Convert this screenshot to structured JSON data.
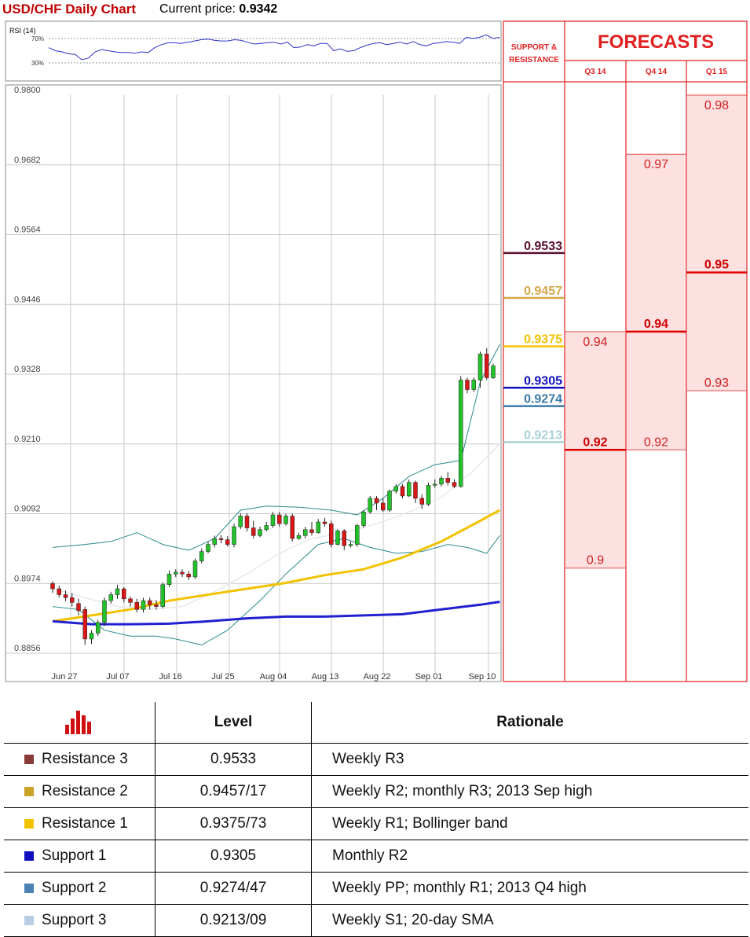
{
  "header": {
    "title": "USD/CHF Daily Chart",
    "price_label": "Current price:",
    "price_value": "0.9342"
  },
  "rsi": {
    "label": "RSI (14)",
    "levels": [
      "70%",
      "30%"
    ]
  },
  "chart_data": {
    "type": "candlestick",
    "y_ticks": [
      "0.9800",
      "0.9682",
      "0.9564",
      "0.9446",
      "0.9328",
      "0.9210",
      "0.9092",
      "0.8974",
      "0.8856"
    ],
    "ylim": [
      0.8856,
      0.98
    ],
    "x_ticks": [
      "Jun 27",
      "Jul 07",
      "Jul 16",
      "Jul 25",
      "Aug 04",
      "Aug 13",
      "Aug 22",
      "Sep 01",
      "Sep 10"
    ],
    "candles": [
      [
        0.8974,
        0.8965,
        0.8978,
        0.8958
      ],
      [
        0.8965,
        0.8955,
        0.897,
        0.895
      ],
      [
        0.8955,
        0.895,
        0.8962,
        0.8944
      ],
      [
        0.895,
        0.8942,
        0.8958,
        0.8935
      ],
      [
        0.894,
        0.8928,
        0.8948,
        0.892
      ],
      [
        0.893,
        0.888,
        0.8935,
        0.887
      ],
      [
        0.888,
        0.889,
        0.8895,
        0.8872
      ],
      [
        0.889,
        0.8908,
        0.8912,
        0.8885
      ],
      [
        0.8908,
        0.8945,
        0.895,
        0.8902
      ],
      [
        0.8945,
        0.8955,
        0.896,
        0.894
      ],
      [
        0.8955,
        0.8965,
        0.8972,
        0.8948
      ],
      [
        0.8965,
        0.8948,
        0.8968,
        0.8942
      ],
      [
        0.8948,
        0.8942,
        0.8952,
        0.8935
      ],
      [
        0.8942,
        0.893,
        0.8948,
        0.8925
      ],
      [
        0.893,
        0.8945,
        0.895,
        0.8925
      ],
      [
        0.8945,
        0.8938,
        0.895,
        0.893
      ],
      [
        0.8938,
        0.8935,
        0.8946,
        0.893
      ],
      [
        0.8935,
        0.8972,
        0.8976,
        0.8932
      ],
      [
        0.8972,
        0.899,
        0.8996,
        0.8968
      ],
      [
        0.899,
        0.8993,
        0.8998,
        0.8985
      ],
      [
        0.8993,
        0.899,
        0.8998,
        0.8985
      ],
      [
        0.899,
        0.8985,
        0.8995,
        0.898
      ],
      [
        0.8985,
        0.9012,
        0.9016,
        0.8982
      ],
      [
        0.9012,
        0.9028,
        0.9033,
        0.9008
      ],
      [
        0.9028,
        0.904,
        0.9045,
        0.9025
      ],
      [
        0.904,
        0.905,
        0.9055,
        0.9035
      ],
      [
        0.905,
        0.9048,
        0.9056,
        0.9042
      ],
      [
        0.9048,
        0.904,
        0.9054,
        0.9036
      ],
      [
        0.904,
        0.907,
        0.9075,
        0.9035
      ],
      [
        0.907,
        0.9088,
        0.9093,
        0.9066
      ],
      [
        0.9088,
        0.9068,
        0.9093,
        0.9062
      ],
      [
        0.9068,
        0.9055,
        0.908,
        0.905
      ],
      [
        0.9055,
        0.9065,
        0.907,
        0.9052
      ],
      [
        0.9065,
        0.9072,
        0.9078,
        0.9062
      ],
      [
        0.9072,
        0.909,
        0.9095,
        0.9068
      ],
      [
        0.909,
        0.9075,
        0.9095,
        0.907
      ],
      [
        0.9075,
        0.9088,
        0.9092,
        0.9072
      ],
      [
        0.9088,
        0.905,
        0.9092,
        0.9045
      ],
      [
        0.905,
        0.9055,
        0.906,
        0.9048
      ],
      [
        0.9055,
        0.9065,
        0.907,
        0.905
      ],
      [
        0.9065,
        0.906,
        0.9078,
        0.9055
      ],
      [
        0.906,
        0.9078,
        0.9083,
        0.9058
      ],
      [
        0.9078,
        0.9075,
        0.9085,
        0.907
      ],
      [
        0.9075,
        0.904,
        0.908,
        0.9035
      ],
      [
        0.904,
        0.9063,
        0.9066,
        0.9038
      ],
      [
        0.9063,
        0.9038,
        0.9066,
        0.903
      ],
      [
        0.9038,
        0.904,
        0.9045,
        0.9035
      ],
      [
        0.904,
        0.9072,
        0.9075,
        0.9036
      ],
      [
        0.9072,
        0.9095,
        0.9098,
        0.9068
      ],
      [
        0.9095,
        0.9118,
        0.9122,
        0.9092
      ],
      [
        0.9118,
        0.911,
        0.9122,
        0.9098
      ],
      [
        0.911,
        0.9098,
        0.9118,
        0.9095
      ],
      [
        0.9098,
        0.913,
        0.9133,
        0.9095
      ],
      [
        0.913,
        0.9138,
        0.9142,
        0.9126
      ],
      [
        0.9138,
        0.9122,
        0.9142,
        0.9118
      ],
      [
        0.9122,
        0.9145,
        0.915,
        0.912
      ],
      [
        0.9145,
        0.9118,
        0.9148,
        0.911
      ],
      [
        0.9118,
        0.9108,
        0.9125,
        0.91
      ],
      [
        0.9108,
        0.914,
        0.9145,
        0.9105
      ],
      [
        0.914,
        0.9142,
        0.915,
        0.9136
      ],
      [
        0.9142,
        0.9152,
        0.9156,
        0.9138
      ],
      [
        0.9152,
        0.9145,
        0.9162,
        0.914
      ],
      [
        0.9145,
        0.9138,
        0.915,
        0.9135
      ],
      [
        0.9138,
        0.9318,
        0.9325,
        0.9136
      ],
      [
        0.9318,
        0.9302,
        0.9322,
        0.9296
      ],
      [
        0.9302,
        0.9318,
        0.9322,
        0.9298
      ],
      [
        0.9318,
        0.9362,
        0.9366,
        0.9305
      ],
      [
        0.9362,
        0.9322,
        0.9372,
        0.9318
      ],
      [
        0.9322,
        0.9342,
        0.9346,
        0.932
      ]
    ],
    "bollinger_upper": [
      [
        0,
        0.9035
      ],
      [
        5,
        0.904
      ],
      [
        9,
        0.9045
      ],
      [
        13,
        0.906
      ],
      [
        17,
        0.904
      ],
      [
        21,
        0.903
      ],
      [
        25,
        0.905
      ],
      [
        29,
        0.9098
      ],
      [
        33,
        0.9105
      ],
      [
        38,
        0.9103
      ],
      [
        43,
        0.9098
      ],
      [
        47,
        0.909
      ],
      [
        51,
        0.9118
      ],
      [
        55,
        0.9155
      ],
      [
        59,
        0.9175
      ],
      [
        63,
        0.9182
      ],
      [
        66,
        0.9315
      ],
      [
        69,
        0.9378
      ]
    ],
    "bollinger_lower": [
      [
        0,
        0.8935
      ],
      [
        4,
        0.893
      ],
      [
        8,
        0.8895
      ],
      [
        12,
        0.8885
      ],
      [
        16,
        0.8885
      ],
      [
        19,
        0.888
      ],
      [
        23,
        0.887
      ],
      [
        27,
        0.8895
      ],
      [
        32,
        0.8945
      ],
      [
        36,
        0.899
      ],
      [
        41,
        0.904
      ],
      [
        45,
        0.905
      ],
      [
        49,
        0.9035
      ],
      [
        53,
        0.9025
      ],
      [
        57,
        0.9028
      ],
      [
        61,
        0.904
      ],
      [
        64,
        0.9035
      ],
      [
        67,
        0.9025
      ],
      [
        69,
        0.9055
      ]
    ],
    "sma20": [
      [
        0,
        0.8965
      ],
      [
        5,
        0.895
      ],
      [
        10,
        0.8935
      ],
      [
        15,
        0.893
      ],
      [
        20,
        0.8935
      ],
      [
        25,
        0.896
      ],
      [
        30,
        0.899
      ],
      [
        35,
        0.9025
      ],
      [
        40,
        0.905
      ],
      [
        45,
        0.906
      ],
      [
        50,
        0.9075
      ],
      [
        55,
        0.9095
      ],
      [
        60,
        0.912
      ],
      [
        65,
        0.9165
      ],
      [
        69,
        0.921
      ]
    ],
    "sma55": [
      [
        0,
        0.891
      ],
      [
        6,
        0.892
      ],
      [
        12,
        0.893
      ],
      [
        18,
        0.8945
      ],
      [
        24,
        0.8955
      ],
      [
        30,
        0.8965
      ],
      [
        36,
        0.8975
      ],
      [
        42,
        0.8988
      ],
      [
        48,
        0.8998
      ],
      [
        54,
        0.9018
      ],
      [
        60,
        0.9045
      ],
      [
        66,
        0.908
      ],
      [
        69,
        0.9098
      ]
    ],
    "sma100": [
      [
        0,
        0.891
      ],
      [
        6,
        0.8905
      ],
      [
        12,
        0.8905
      ],
      [
        18,
        0.8906
      ],
      [
        24,
        0.891
      ],
      [
        30,
        0.8915
      ],
      [
        36,
        0.8918
      ],
      [
        42,
        0.8918
      ],
      [
        48,
        0.892
      ],
      [
        54,
        0.8922
      ],
      [
        60,
        0.893
      ],
      [
        66,
        0.8938
      ],
      [
        69,
        0.8943
      ]
    ],
    "rsi_values": [
      55,
      50,
      48,
      45,
      44,
      35,
      38,
      48,
      52,
      50,
      48,
      47,
      47,
      46,
      48,
      47,
      55,
      60,
      63,
      63,
      62,
      64,
      66,
      68,
      69,
      67,
      66,
      66,
      68,
      67,
      64,
      61,
      62,
      63,
      64,
      61,
      64,
      55,
      56,
      60,
      58,
      62,
      62,
      50,
      53,
      49,
      50,
      55,
      59,
      62,
      63,
      60,
      62,
      64,
      61,
      65,
      60,
      58,
      62,
      63,
      65,
      64,
      62,
      72,
      70,
      72,
      76,
      70,
      72
    ],
    "support_resistance": [
      {
        "label": "0.9533",
        "value": 0.9533,
        "color": "#5a1030"
      },
      {
        "label": "0.9457",
        "value": 0.9457,
        "color": "#d4a84a"
      },
      {
        "label": "0.9375",
        "value": 0.9375,
        "color": "#f2c200"
      },
      {
        "label": "0.9305",
        "value": 0.9305,
        "color": "#1010c0"
      },
      {
        "label": "0.9274",
        "value": 0.9274,
        "color": "#3a7aa8"
      },
      {
        "label": "0.9213",
        "value": 0.9213,
        "color": "#a8d0d8"
      }
    ],
    "forecasts": {
      "title": "FORECASTS",
      "sr_header": [
        "SUPPORT &",
        "RESISTANCE"
      ],
      "columns": [
        {
          "label": "Q3 14",
          "high": "0.94",
          "high_v": 0.94,
          "median": "0.92",
          "median_v": 0.92,
          "low": "0.9",
          "low_v": 0.9
        },
        {
          "label": "Q4 14",
          "high": "0.97",
          "high_v": 0.97,
          "median": "0.94",
          "median_v": 0.94,
          "low": "0.92",
          "low_v": 0.92
        },
        {
          "label": "Q1 15",
          "high": "0.98",
          "high_v": 0.98,
          "median": "0.95",
          "median_v": 0.95,
          "low": "0.93",
          "low_v": 0.93
        }
      ]
    }
  },
  "table": {
    "headers": [
      "Level",
      "Rationale"
    ],
    "icon": "bar-chart-icon",
    "rows": [
      {
        "name": "Resistance 3",
        "color": "#8b3a3a",
        "level": "0.9533",
        "rationale": "Weekly R3"
      },
      {
        "name": "Resistance 2",
        "color": "#c9a227",
        "level": "0.9457/17",
        "rationale": "Weekly R2; monthly R3; 2013 Sep high"
      },
      {
        "name": "Resistance 1",
        "color": "#f2c200",
        "level": "0.9375/73",
        "rationale": "Weekly R1; Bollinger band"
      },
      {
        "name": "Support 1",
        "color": "#1010c0",
        "level": "0.9305",
        "rationale": "Monthly R2"
      },
      {
        "name": "Support 2",
        "color": "#4a82b4",
        "level": "0.9274/47",
        "rationale": "Weekly PP; monthly R1; 2013 Q4 high"
      },
      {
        "name": "Support 3",
        "color": "#b8cce4",
        "level": "0.9213/09",
        "rationale": "Weekly S1; 20-day SMA"
      }
    ]
  }
}
